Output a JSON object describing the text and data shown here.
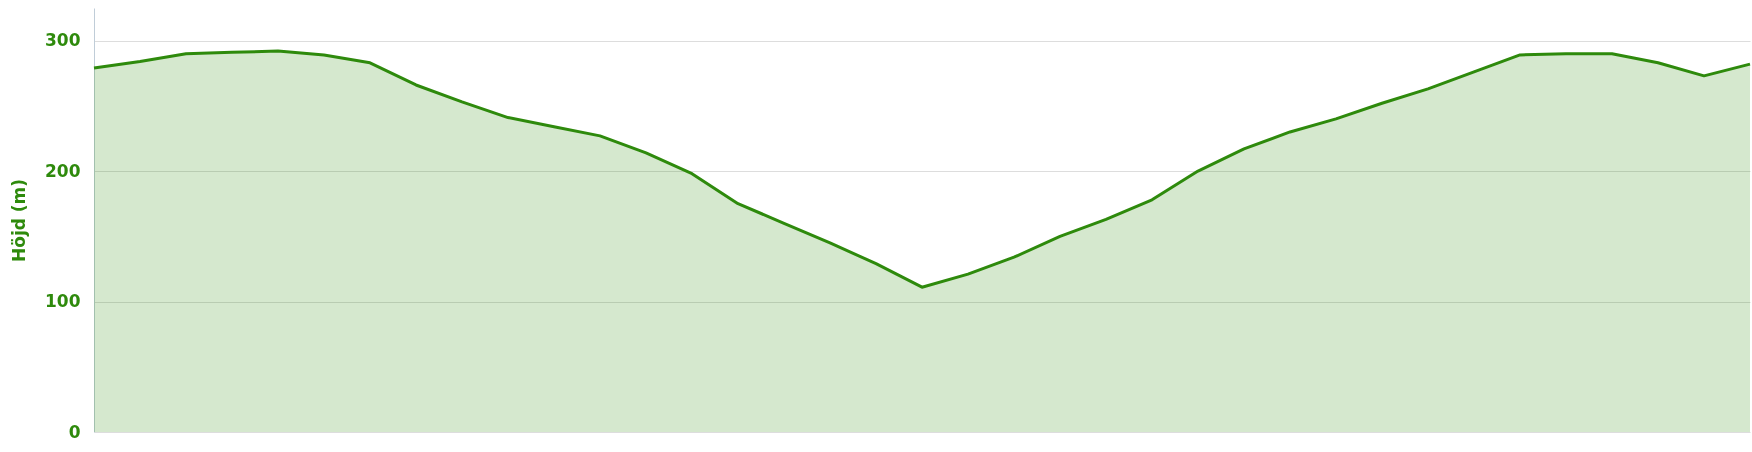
{
  "chart_data": {
    "type": "area",
    "ylabel": "Höjd (m)",
    "ylim": [
      0,
      325
    ],
    "yticks": [
      0,
      100,
      200,
      300
    ],
    "grid": "y",
    "tick_labels": "y",
    "categories": [
      null,
      null,
      null,
      null,
      null,
      null,
      null,
      null,
      null,
      null,
      null,
      null,
      null,
      null,
      null,
      null,
      null,
      null,
      null,
      null,
      null,
      null,
      null,
      null,
      null,
      null,
      null,
      null,
      null,
      null,
      null,
      null,
      null,
      null,
      null,
      null,
      null
    ],
    "series": [
      {
        "color": "#2e8a0c",
        "values": [
          279,
          284,
          290,
          291,
          292,
          289,
          283,
          266,
          253,
          241,
          234,
          227,
          214,
          198,
          175,
          160,
          145,
          129,
          111,
          121,
          134,
          150,
          163,
          178,
          200,
          217,
          230,
          240,
          252,
          263,
          276,
          289,
          290,
          290,
          283,
          273,
          282
        ]
      }
    ]
  }
}
